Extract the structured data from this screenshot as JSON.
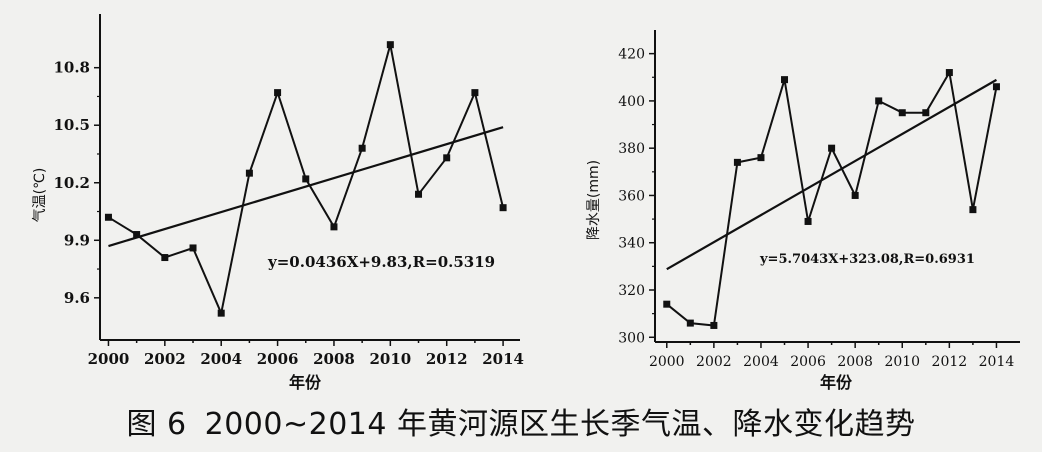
{
  "figure": {
    "caption_label": "图 6",
    "caption_text": "2000~2014 年黄河源区生长季气温、降水变化趋势"
  },
  "chart_data": [
    {
      "type": "line",
      "xlabel": "年份",
      "ylabel": "气温(℃)",
      "x": [
        2000,
        2001,
        2002,
        2003,
        2004,
        2005,
        2006,
        2007,
        2008,
        2009,
        2010,
        2011,
        2012,
        2013,
        2014
      ],
      "series": [
        {
          "values": [
            10.02,
            9.93,
            9.81,
            9.86,
            9.52,
            10.25,
            10.67,
            10.22,
            9.97,
            10.38,
            10.92,
            10.14,
            10.33,
            10.67,
            10.07
          ]
        }
      ],
      "trend": {
        "from": [
          2000,
          9.87
        ],
        "to": [
          2014,
          10.49
        ]
      },
      "xticks": [
        2000,
        2002,
        2004,
        2006,
        2008,
        2010,
        2012,
        2014
      ],
      "yticks": [
        9.6,
        9.9,
        10.2,
        10.5,
        10.8
      ],
      "ytick_labels": [
        "9.6",
        "9.9",
        "10.2",
        "10.5",
        "10.8"
      ],
      "xlim": [
        1999.7,
        2014.6
      ],
      "ylim": [
        9.38,
        11.08
      ],
      "annotation": "y=0.0436X+9.83,R=0.5319",
      "marker": "square",
      "grid": false
    },
    {
      "type": "line",
      "xlabel": "年份",
      "ylabel": "降水量(mm)",
      "x": [
        2000,
        2001,
        2002,
        2003,
        2004,
        2005,
        2006,
        2007,
        2008,
        2009,
        2010,
        2011,
        2012,
        2013,
        2014
      ],
      "series": [
        {
          "values": [
            314,
            306,
            305,
            374,
            376,
            409,
            349,
            380,
            360,
            400,
            395,
            395,
            412,
            354,
            406
          ]
        }
      ],
      "trend": {
        "from": [
          2000,
          328.8
        ],
        "to": [
          2014,
          408.9
        ]
      },
      "xticks": [
        2000,
        2002,
        2004,
        2006,
        2008,
        2010,
        2012,
        2014
      ],
      "yticks": [
        300,
        320,
        340,
        360,
        380,
        400,
        420
      ],
      "ytick_labels": [
        "300",
        "320",
        "340",
        "360",
        "380",
        "400",
        "420"
      ],
      "xlim": [
        1999.5,
        2015
      ],
      "ylim": [
        298,
        430
      ],
      "annotation": "y=5.7043X+323.08,R=0.6931",
      "marker": "square",
      "grid": false
    }
  ]
}
